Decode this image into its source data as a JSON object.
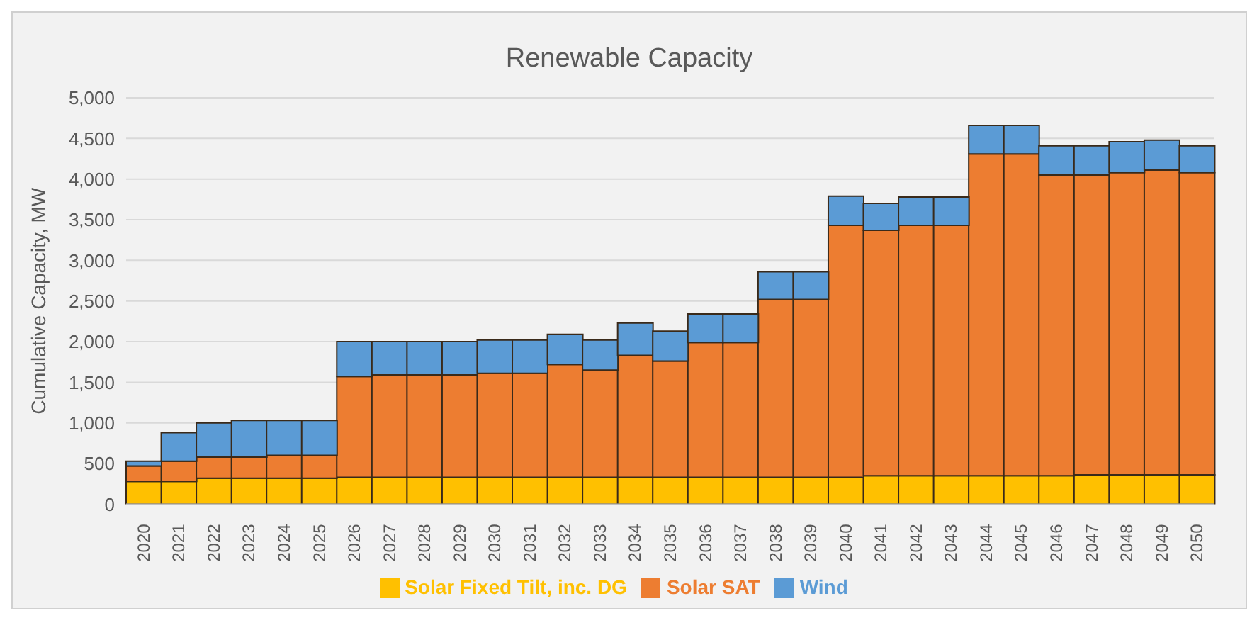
{
  "chart_data": {
    "type": "bar",
    "title": "Renewable Capacity",
    "ylabel": "Cumulative Capacity, MW",
    "stacked": true,
    "grid": "y",
    "legend": "bottom",
    "categories": [
      "2020",
      "2021",
      "2022",
      "2023",
      "2024",
      "2025",
      "2026",
      "2027",
      "2028",
      "2029",
      "2030",
      "2031",
      "2032",
      "2033",
      "2034",
      "2035",
      "2036",
      "2037",
      "2038",
      "2039",
      "2040",
      "2041",
      "2042",
      "2043",
      "2044",
      "2045",
      "2046",
      "2047",
      "2048",
      "2049",
      "2050"
    ],
    "ylim": [
      0,
      5000
    ],
    "yticks": [
      {
        "value": 0,
        "label": "0"
      },
      {
        "value": 500,
        "label": "500"
      },
      {
        "value": 1000,
        "label": "1,000"
      },
      {
        "value": 1500,
        "label": "1,500"
      },
      {
        "value": 2000,
        "label": "2,000"
      },
      {
        "value": 2500,
        "label": "2,500"
      },
      {
        "value": 3000,
        "label": "3,000"
      },
      {
        "value": 3500,
        "label": "3,500"
      },
      {
        "value": 4000,
        "label": "4,000"
      },
      {
        "value": 4500,
        "label": "4,500"
      },
      {
        "value": 5000,
        "label": "5,000"
      }
    ],
    "series": [
      {
        "name": "Solar Fixed Tilt, inc. DG",
        "color": "#ffc000",
        "values": [
          280,
          280,
          320,
          320,
          320,
          320,
          330,
          330,
          330,
          330,
          330,
          330,
          330,
          330,
          330,
          330,
          330,
          330,
          330,
          330,
          330,
          350,
          350,
          350,
          350,
          350,
          350,
          360,
          360,
          360,
          360
        ]
      },
      {
        "name": "Solar SAT",
        "color": "#ed7d31",
        "values": [
          190,
          250,
          260,
          260,
          280,
          280,
          1240,
          1260,
          1260,
          1260,
          1280,
          1280,
          1390,
          1320,
          1500,
          1430,
          1660,
          1660,
          2190,
          2190,
          3100,
          3020,
          3080,
          3080,
          3960,
          3960,
          3700,
          3690,
          3720,
          3750,
          3720
        ]
      },
      {
        "name": "Wind",
        "color": "#5b9bd5",
        "values": [
          60,
          350,
          420,
          450,
          430,
          430,
          430,
          410,
          410,
          410,
          410,
          410,
          370,
          370,
          400,
          370,
          350,
          350,
          340,
          340,
          360,
          330,
          350,
          350,
          350,
          350,
          360,
          360,
          380,
          370,
          330
        ]
      }
    ]
  }
}
